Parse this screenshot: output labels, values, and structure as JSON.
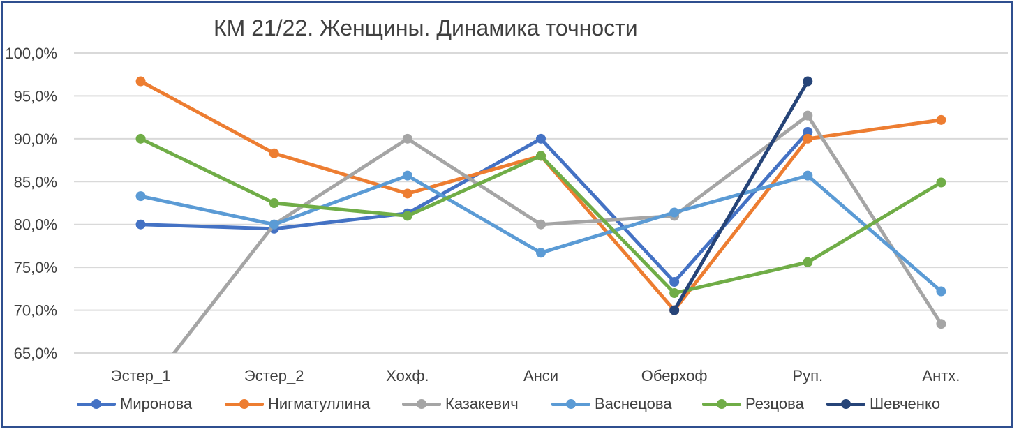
{
  "chart_data": {
    "type": "line",
    "title": "КМ 21/22. Женщины. Динамика точности",
    "categories": [
      "Эстер_1",
      "Эстер_2",
      "Хохф.",
      "Анси",
      "Оберхоф",
      "Руп.",
      "Антх."
    ],
    "ylim": [
      0.65,
      1.0
    ],
    "yticks": [
      "100,0%",
      "95,0%",
      "90,0%",
      "85,0%",
      "80,0%",
      "75,0%",
      "70,0%",
      "65,0%"
    ],
    "ytick_values": [
      1.0,
      0.95,
      0.9,
      0.85,
      0.8,
      0.75,
      0.7,
      0.65
    ],
    "grid": true,
    "legend_position": "bottom",
    "series": [
      {
        "name": "Миронова",
        "color": "#4472C4",
        "values": [
          0.8,
          0.795,
          0.813,
          0.9,
          0.733,
          0.908,
          null
        ]
      },
      {
        "name": "Нигматуллина",
        "color": "#ED7D31",
        "values": [
          0.967,
          0.883,
          0.836,
          0.88,
          0.7,
          0.9,
          0.922
        ]
      },
      {
        "name": "Казакевич",
        "color": "#A5A5A5",
        "values": [
          0.6,
          0.8,
          0.9,
          0.8,
          0.81,
          0.927,
          0.684
        ]
      },
      {
        "name": "Васнецова",
        "color": "#5B9BD5",
        "values": [
          0.833,
          0.8,
          0.857,
          0.767,
          0.814,
          0.857,
          0.722
        ]
      },
      {
        "name": "Резцова",
        "color": "#70AD47",
        "values": [
          0.9,
          0.825,
          0.81,
          0.88,
          0.72,
          0.756,
          0.849
        ]
      },
      {
        "name": "Шевченко",
        "color": "#264478",
        "values": [
          null,
          null,
          null,
          null,
          0.7,
          0.967,
          null
        ]
      }
    ]
  }
}
